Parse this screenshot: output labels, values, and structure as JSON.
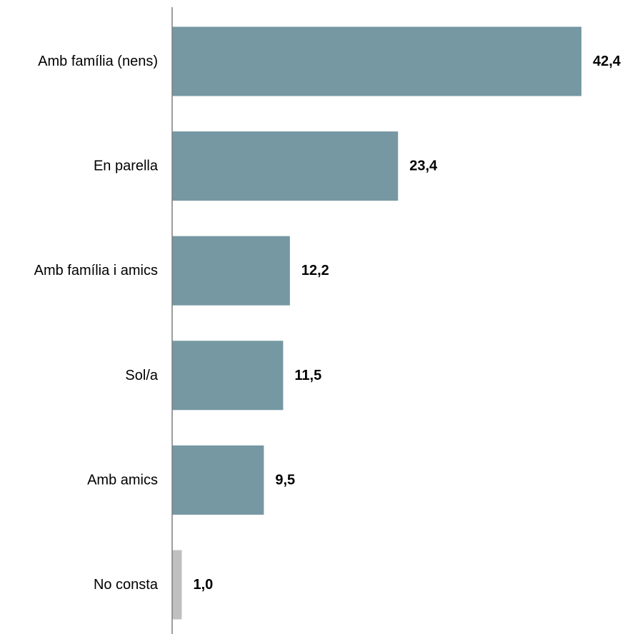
{
  "chart_data": {
    "type": "bar",
    "orientation": "horizontal",
    "title": "",
    "xlabel": "",
    "ylabel": "",
    "categories": [
      "Amb família (nens)",
      "En parella",
      "Amb família i amics",
      "Sol/a",
      "Amb amics",
      "No consta"
    ],
    "values": [
      42.4,
      23.4,
      12.2,
      11.5,
      9.5,
      1.0
    ],
    "value_labels": [
      "42,4",
      "23,4",
      "12,2",
      "11,5",
      "9,5",
      "1,0"
    ],
    "bar_colors": [
      "#7598A3",
      "#7598A3",
      "#7598A3",
      "#7598A3",
      "#7598A3",
      "#C0C0C0"
    ],
    "xlim": [
      0,
      42.4
    ],
    "grid": false,
    "legend": "none"
  }
}
